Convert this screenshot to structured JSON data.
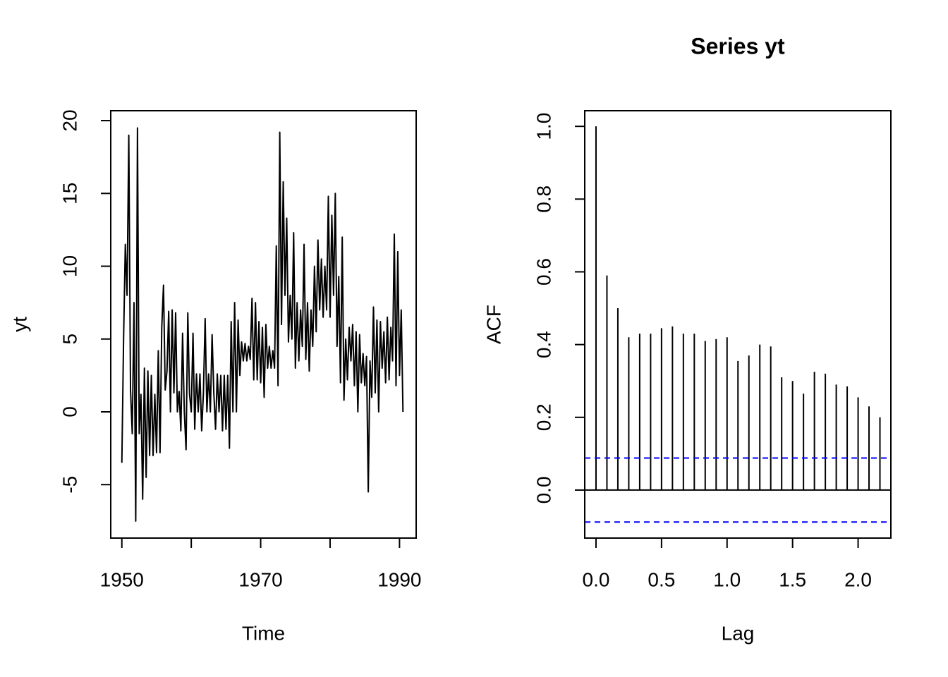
{
  "chart_data": [
    {
      "type": "line",
      "xlabel": "Time",
      "ylabel": "yt",
      "color": "#000000",
      "xlim": [
        1948.4,
        1992.4
      ],
      "ylim": [
        -8.67,
        20.68
      ],
      "xticks": [
        1950,
        {
          "value": 1960,
          "label": null
        },
        1970,
        {
          "value": 1980,
          "label": null
        },
        1990
      ],
      "yticks": [
        -5,
        0,
        5,
        10,
        15,
        20
      ],
      "x": [
        1950,
        1950.25,
        1950.5,
        1950.75,
        1951,
        1951.25,
        1951.5,
        1951.75,
        1952,
        1952.25,
        1952.5,
        1952.75,
        1953,
        1953.25,
        1953.5,
        1953.75,
        1954,
        1954.25,
        1954.5,
        1954.75,
        1955,
        1955.25,
        1955.5,
        1955.75,
        1956,
        1956.25,
        1956.5,
        1956.75,
        1957,
        1957.25,
        1957.5,
        1957.75,
        1958,
        1958.25,
        1958.5,
        1958.75,
        1959,
        1959.25,
        1959.5,
        1959.75,
        1960,
        1960.25,
        1960.5,
        1960.75,
        1961,
        1961.25,
        1961.5,
        1961.75,
        1962,
        1962.25,
        1962.5,
        1962.75,
        1963,
        1963.25,
        1963.5,
        1963.75,
        1964,
        1964.25,
        1964.5,
        1964.75,
        1965,
        1965.25,
        1965.5,
        1965.75,
        1966,
        1966.25,
        1966.5,
        1966.75,
        1967,
        1967.25,
        1967.5,
        1967.75,
        1968,
        1968.25,
        1968.5,
        1968.75,
        1969,
        1969.25,
        1969.5,
        1969.75,
        1970,
        1970.25,
        1970.5,
        1970.75,
        1971,
        1971.25,
        1971.5,
        1971.75,
        1972,
        1972.25,
        1972.5,
        1972.75,
        1973,
        1973.25,
        1973.5,
        1973.75,
        1974,
        1974.25,
        1974.5,
        1974.75,
        1975,
        1975.25,
        1975.5,
        1975.75,
        1976,
        1976.25,
        1976.5,
        1976.75,
        1977,
        1977.25,
        1977.5,
        1977.75,
        1978,
        1978.25,
        1978.5,
        1978.75,
        1979,
        1979.25,
        1979.5,
        1979.75,
        1980,
        1980.25,
        1980.5,
        1980.75,
        1981,
        1981.25,
        1981.5,
        1981.75,
        1982,
        1982.25,
        1982.5,
        1982.75,
        1983,
        1983.25,
        1983.5,
        1983.75,
        1984,
        1984.25,
        1984.5,
        1984.75,
        1985,
        1985.25,
        1985.5,
        1985.75,
        1986,
        1986.25,
        1986.5,
        1986.75,
        1987,
        1987.25,
        1987.5,
        1987.75,
        1988,
        1988.25,
        1988.5,
        1988.75,
        1989,
        1989.25,
        1989.5,
        1989.75,
        1990,
        1990.25,
        1990.5
      ],
      "values": [
        -3.5,
        5,
        11.5,
        8,
        19,
        1.5,
        -1.5,
        7.5,
        -7.5,
        19.5,
        -1.5,
        1.2,
        -6,
        3,
        -4.5,
        2.8,
        -3,
        2.5,
        -3,
        1.2,
        -2.8,
        4.2,
        -2.8,
        5.8,
        8.7,
        1.5,
        2.8,
        6.9,
        0,
        7,
        1.3,
        6.8,
        0,
        1.4,
        -1.3,
        5.4,
        0,
        -2.6,
        6.8,
        1.2,
        0,
        5.4,
        -1.2,
        2.6,
        0,
        2.6,
        -1.3,
        1.3,
        6.4,
        0,
        2.6,
        0,
        5.3,
        1.3,
        -1.2,
        2.6,
        0,
        2.5,
        -1.3,
        2.5,
        -1.2,
        2.5,
        -2.5,
        6.2,
        0,
        7.5,
        0,
        6.3,
        2.5,
        4.8,
        3.5,
        4.7,
        3.5,
        4.5,
        3.6,
        7.8,
        2.2,
        7.5,
        2.2,
        6.2,
        2,
        5.8,
        1,
        6,
        3,
        4.5,
        3,
        4.2,
        3,
        11.4,
        1.8,
        19.2,
        6,
        15.8,
        8,
        13.3,
        4.8,
        8,
        5,
        12.3,
        3,
        7.5,
        3.5,
        7,
        4.5,
        11.5,
        3.6,
        7.5,
        2.8,
        7,
        4.5,
        10,
        5.5,
        11.8,
        7,
        10.5,
        6.5,
        10,
        7,
        14.8,
        6.5,
        13.5,
        8,
        15,
        4.5,
        9.3,
        2,
        12,
        0.8,
        5,
        2.2,
        5.8,
        3.5,
        6,
        1.8,
        5.5,
        0,
        5.3,
        2,
        4,
        1.8,
        3.8,
        -5.5,
        3.5,
        1,
        7.2,
        1.3,
        6.3,
        0,
        6.2,
        3,
        5.5,
        2,
        6.5,
        2.2,
        5.8,
        3.5,
        12.2,
        1.8,
        11,
        2.5,
        7,
        0
      ]
    },
    {
      "type": "acf",
      "title": "Series  yt",
      "xlabel": "Lag",
      "ylabel": "ACF",
      "color": "#000000",
      "xlim": [
        -0.086,
        2.25
      ],
      "ylim": [
        -0.132,
        1.043
      ],
      "xticks": [
        {
          "value": 0,
          "label": "0.0"
        },
        {
          "value": 0.5,
          "label": "0.5"
        },
        {
          "value": 1,
          "label": "1.0"
        },
        {
          "value": 1.5,
          "label": "1.5"
        },
        {
          "value": 2,
          "label": "2.0"
        }
      ],
      "yticks": [
        {
          "value": 0,
          "label": "0.0"
        },
        {
          "value": 0.2,
          "label": "0.2"
        },
        {
          "value": 0.4,
          "label": "0.4"
        },
        {
          "value": 0.6,
          "label": "0.6"
        },
        {
          "value": 0.8,
          "label": "0.8"
        },
        {
          "value": 1,
          "label": "1.0"
        }
      ],
      "x": [
        0,
        0.0833,
        0.1667,
        0.25,
        0.3333,
        0.4167,
        0.5,
        0.5833,
        0.6667,
        0.75,
        0.8333,
        0.9167,
        1,
        1.0833,
        1.1667,
        1.25,
        1.3333,
        1.4167,
        1.5,
        1.5833,
        1.6667,
        1.75,
        1.8333,
        1.9167,
        2,
        2.0833,
        2.1667
      ],
      "values": [
        1,
        0.59,
        0.5,
        0.42,
        0.43,
        0.43,
        0.445,
        0.45,
        0.43,
        0.43,
        0.41,
        0.415,
        0.42,
        0.355,
        0.37,
        0.4,
        0.395,
        0.31,
        0.3,
        0.265,
        0.325,
        0.32,
        0.29,
        0.285,
        0.255,
        0.23,
        0.2
      ],
      "ci_bounds": [
        0.088,
        -0.088
      ],
      "ci_color": "#0000ff"
    }
  ]
}
